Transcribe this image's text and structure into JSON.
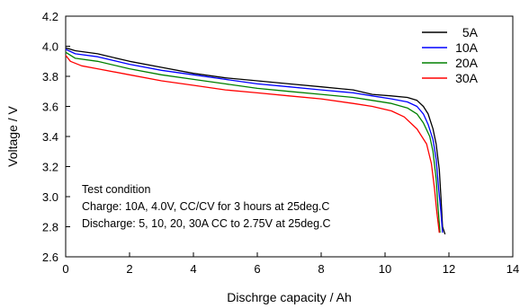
{
  "chart_data": {
    "type": "line",
    "xlabel": "Dischrge capacity / Ah",
    "ylabel": "Voltage / V",
    "xlim": [
      0,
      14
    ],
    "ylim": [
      2.6,
      4.2
    ],
    "xticks": [
      "0",
      "2",
      "4",
      "6",
      "8",
      "10",
      "12",
      "14"
    ],
    "yticks": [
      "2.6",
      "2.8",
      "3.0",
      "3.2",
      "3.4",
      "3.6",
      "3.8",
      "4.0",
      "4.2"
    ],
    "grid": false,
    "legend_position": "top-right",
    "annotation": [
      "Test condition",
      "Charge: 10A, 4.0V, CC/CV for 3 hours at 25deg.C",
      "Discharge: 5, 10, 20, 30A CC to 2.75V at 25deg.C"
    ],
    "series": [
      {
        "name": "5A",
        "color": "#000000",
        "x": [
          0,
          0.3,
          1,
          2,
          3,
          4,
          5,
          6,
          7,
          8,
          9,
          9.6,
          10.2,
          10.7,
          11.0,
          11.2,
          11.35,
          11.5,
          11.6,
          11.7,
          11.75,
          11.8,
          11.88
        ],
        "y": [
          3.99,
          3.97,
          3.95,
          3.9,
          3.86,
          3.82,
          3.79,
          3.77,
          3.75,
          3.73,
          3.71,
          3.68,
          3.67,
          3.66,
          3.64,
          3.6,
          3.55,
          3.45,
          3.35,
          3.18,
          3.0,
          2.8,
          2.75
        ]
      },
      {
        "name": "10A",
        "color": "#0000ff",
        "x": [
          0,
          0.3,
          1,
          2,
          3,
          4,
          5,
          6,
          7,
          8,
          9,
          9.6,
          10.2,
          10.7,
          11.0,
          11.2,
          11.35,
          11.5,
          11.6,
          11.68,
          11.75,
          11.8
        ],
        "y": [
          3.98,
          3.95,
          3.93,
          3.88,
          3.84,
          3.81,
          3.78,
          3.75,
          3.73,
          3.71,
          3.69,
          3.67,
          3.65,
          3.63,
          3.6,
          3.55,
          3.48,
          3.38,
          3.25,
          3.05,
          2.9,
          2.76
        ]
      },
      {
        "name": "20A",
        "color": "#008000",
        "x": [
          0,
          0.3,
          1,
          2,
          3,
          4,
          5,
          6,
          7,
          8,
          9,
          9.6,
          10.2,
          10.7,
          11.0,
          11.2,
          11.4,
          11.5,
          11.6,
          11.65,
          11.72
        ],
        "y": [
          3.96,
          3.92,
          3.9,
          3.85,
          3.81,
          3.78,
          3.75,
          3.72,
          3.7,
          3.68,
          3.66,
          3.64,
          3.62,
          3.59,
          3.55,
          3.49,
          3.4,
          3.3,
          3.12,
          2.95,
          2.76
        ]
      },
      {
        "name": "30A",
        "color": "#ff0000",
        "x": [
          0,
          0.15,
          0.5,
          1,
          2,
          3,
          4,
          5,
          6,
          7,
          8,
          9,
          9.6,
          10.2,
          10.6,
          11.0,
          11.3,
          11.45,
          11.55,
          11.62,
          11.7
        ],
        "y": [
          3.94,
          3.9,
          3.87,
          3.85,
          3.81,
          3.77,
          3.74,
          3.71,
          3.69,
          3.67,
          3.65,
          3.62,
          3.6,
          3.57,
          3.53,
          3.45,
          3.35,
          3.22,
          3.05,
          2.9,
          2.76
        ]
      }
    ]
  }
}
